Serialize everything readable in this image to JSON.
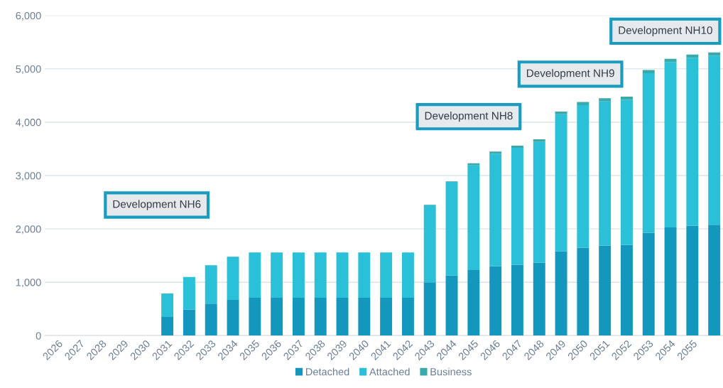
{
  "chart_data": {
    "type": "bar",
    "stacked": true,
    "categories": [
      "2026",
      "2027",
      "2028",
      "2029",
      "2030",
      "2031",
      "2032",
      "2033",
      "2034",
      "2035",
      "2036",
      "2037",
      "2038",
      "2039",
      "2040",
      "2041",
      "2042",
      "2043",
      "2044",
      "2045",
      "2046",
      "2047",
      "2048",
      "2049",
      "2050",
      "2051",
      "2052",
      "2053",
      "2054",
      "2055",
      null
    ],
    "series": [
      {
        "name": "Detached",
        "color": "#1497bd",
        "values": [
          0,
          0,
          0,
          0,
          0,
          350,
          490,
          600,
          670,
          710,
          710,
          710,
          710,
          710,
          710,
          710,
          710,
          1000,
          1130,
          1230,
          1300,
          1330,
          1370,
          1580,
          1650,
          1690,
          1700,
          1930,
          2030,
          2060,
          2080
        ]
      },
      {
        "name": "Attached",
        "color": "#29c0d8",
        "values": [
          0,
          0,
          0,
          0,
          0,
          440,
          610,
          720,
          810,
          850,
          850,
          850,
          850,
          850,
          850,
          850,
          850,
          1440,
          1750,
          1960,
          2110,
          2190,
          2260,
          2570,
          2670,
          2700,
          2720,
          2990,
          3100,
          3150,
          3170
        ]
      },
      {
        "name": "Business",
        "color": "#3aa9a9",
        "values": [
          0,
          0,
          0,
          0,
          0,
          0,
          0,
          0,
          0,
          0,
          0,
          0,
          0,
          0,
          0,
          0,
          0,
          10,
          10,
          40,
          40,
          40,
          50,
          50,
          60,
          60,
          60,
          60,
          60,
          60,
          60
        ]
      }
    ],
    "ylim": [
      0,
      6000
    ],
    "yticks": [
      0,
      {
        "value": 1000,
        "label": "1,000"
      },
      {
        "value": 2000,
        "label": "2,000"
      },
      {
        "value": 3000,
        "label": "3,000"
      },
      {
        "value": 4000,
        "label": "4,000"
      },
      {
        "value": 5000,
        "label": "5,000"
      },
      {
        "value": 6000,
        "label": "6,000"
      }
    ],
    "grid": "y",
    "legend": "bottom",
    "annotations": [
      "Development NH6",
      "Development NH8",
      "Development NH9",
      "Development NH10"
    ]
  }
}
